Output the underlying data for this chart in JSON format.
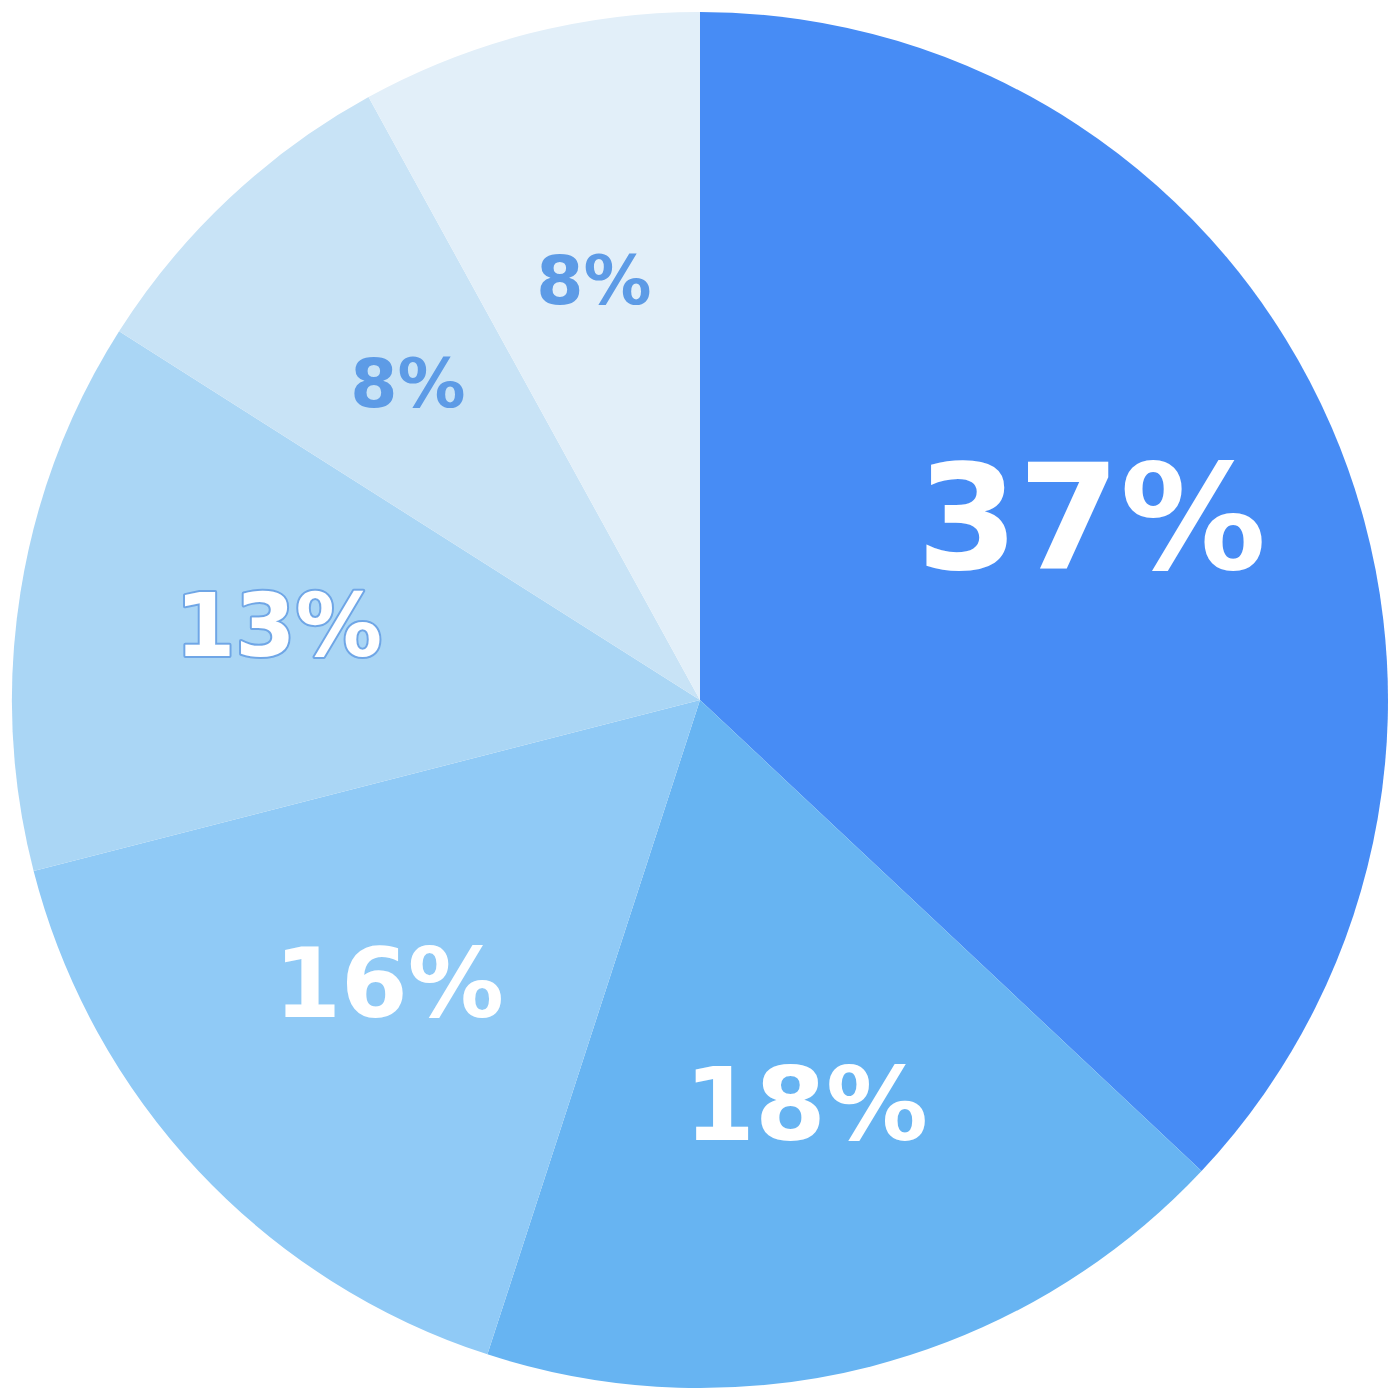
{
  "chart_data": {
    "type": "pie",
    "categories": [
      null,
      null,
      null,
      null,
      null,
      null
    ],
    "values": [
      37,
      18,
      16,
      13,
      8,
      8
    ],
    "colors": [
      "#478cf5",
      "#67b4f2",
      "#90caf6",
      "#aad6f5",
      "#c8e3f6",
      "#e2eff9"
    ],
    "value_labels": [
      "37%",
      "18%",
      "16%",
      "13%",
      "8%",
      "8%"
    ]
  }
}
